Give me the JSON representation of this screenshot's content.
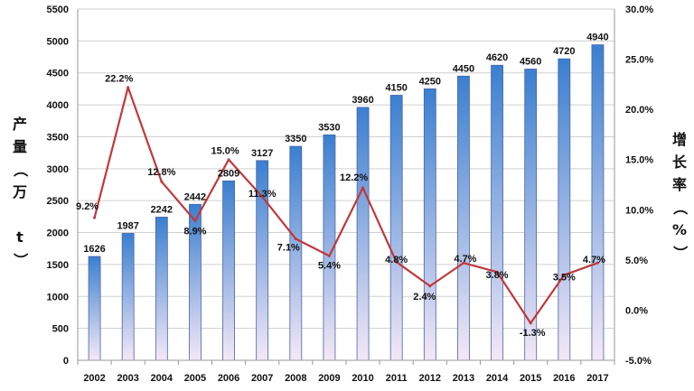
{
  "chart_data": {
    "type": "bar+line",
    "categories": [
      "2002",
      "2003",
      "2004",
      "2005",
      "2006",
      "2007",
      "2008",
      "2009",
      "2010",
      "2011",
      "2012",
      "2013",
      "2014",
      "2015",
      "2016",
      "2017"
    ],
    "series": [
      {
        "name": "产量",
        "type": "bar",
        "axis": "left",
        "values": [
          1626,
          1987,
          2242,
          2442,
          2809,
          3127,
          3350,
          3530,
          3960,
          4150,
          4250,
          4450,
          4620,
          4560,
          4720,
          4940
        ],
        "labels": [
          "1626",
          "1987",
          "2242",
          "2442",
          "2809",
          "3127",
          "3350",
          "3530",
          "3960",
          "4150",
          "4250",
          "4450",
          "4620",
          "4560",
          "4720",
          "4940"
        ]
      },
      {
        "name": "增长率",
        "type": "line",
        "axis": "right",
        "values": [
          9.2,
          22.2,
          12.8,
          8.9,
          15.0,
          11.3,
          7.1,
          5.4,
          12.2,
          4.8,
          2.4,
          4.7,
          3.8,
          -1.3,
          3.5,
          4.7
        ],
        "labels": [
          "9.2%",
          "22.2%",
          "12.8%",
          "8.9%",
          "15.0%",
          "11.3%",
          "7.1%",
          "5.4%",
          "12.2%",
          "4.8%",
          "2.4%",
          "4.7%",
          "3.8%",
          "-1.3%",
          "3.5%",
          "4.7%"
        ]
      }
    ],
    "ylabel_left": "产量（万 t）",
    "ylabel_right": "增长率（%）",
    "ylim_left": [
      0,
      5500
    ],
    "ylim_right": [
      -5,
      30
    ],
    "yticks_left": [
      "0",
      "500",
      "1000",
      "1500",
      "2000",
      "2500",
      "3000",
      "3500",
      "4000",
      "4500",
      "5000",
      "5500"
    ],
    "yticks_right": [
      "-5.0%",
      "0.0%",
      "5.0%",
      "10.0%",
      "15.0%",
      "20.0%",
      "25.0%",
      "30.0%"
    ],
    "grid": true,
    "legend": "none",
    "colors": {
      "bar_top": "#3a7fd0",
      "bar_bottom": "#f4e8f6",
      "bar_edge": "#4a62a8",
      "line": "#c0393b",
      "grid": "#d0d0d0",
      "axis": "#9a9a9a"
    }
  }
}
